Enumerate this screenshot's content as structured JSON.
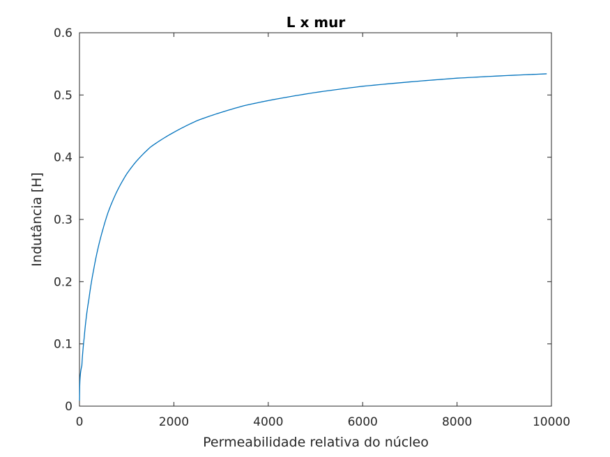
{
  "chart_data": {
    "type": "line",
    "title": "L x mur",
    "xlabel": "Permeabilidade relativa do núcleo",
    "ylabel": "Indutância [H]",
    "xlim": [
      0,
      10000
    ],
    "ylim": [
      0,
      0.6
    ],
    "xticks": [
      0,
      2000,
      4000,
      6000,
      8000,
      10000
    ],
    "xtick_labels": [
      "0",
      "2000",
      "4000",
      "6000",
      "8000",
      "10000"
    ],
    "yticks": [
      0,
      0.1,
      0.2,
      0.3,
      0.4,
      0.5,
      0.6
    ],
    "ytick_labels": [
      "0",
      "0.1",
      "0.2",
      "0.3",
      "0.4",
      "0.5",
      "0.6"
    ],
    "grid": false,
    "series": [
      {
        "color": "#0072BD",
        "x": [
          1,
          50,
          100,
          200,
          300,
          400,
          500,
          600,
          800,
          1000,
          1200,
          1500,
          2000,
          2500,
          3000,
          3500,
          4000,
          5000,
          6000,
          7000,
          8000,
          9000,
          9900
        ],
        "y": [
          0.009,
          0.065,
          0.11,
          0.172,
          0.219,
          0.256,
          0.285,
          0.31,
          0.346,
          0.373,
          0.393,
          0.416,
          0.44,
          0.459,
          0.472,
          0.483,
          0.491,
          0.504,
          0.514,
          0.521,
          0.527,
          0.531,
          0.534
        ]
      }
    ]
  }
}
